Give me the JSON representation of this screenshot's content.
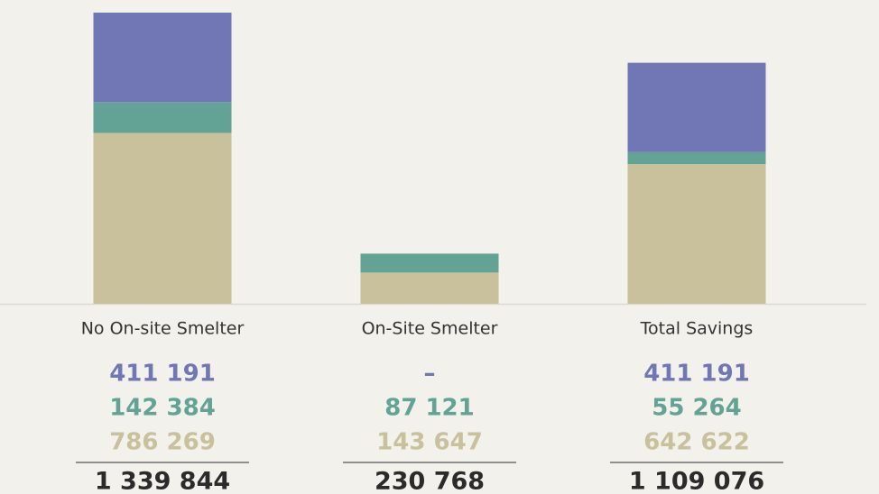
{
  "chart_data": {
    "type": "stacked_bar",
    "categories": [
      "No On-site Smelter",
      "On-Site Smelter",
      "Total Savings"
    ],
    "series": [
      {
        "color": "#c9c19b",
        "values": [
          786269,
          143647,
          642622
        ],
        "value_labels": [
          "786 269",
          "143 647",
          "642 622"
        ]
      },
      {
        "color": "#62a396",
        "values": [
          142384,
          87121,
          55264
        ],
        "value_labels": [
          "142 384",
          "87 121",
          "55 264"
        ]
      },
      {
        "color": "#7176b4",
        "values": [
          411191,
          null,
          411191
        ],
        "value_labels": [
          "411 191",
          "–",
          "411 191"
        ]
      }
    ],
    "totals": [
      1339844,
      230768,
      1109076
    ],
    "total_labels": [
      "1 339 844",
      "230 768",
      "1 109 076"
    ]
  }
}
